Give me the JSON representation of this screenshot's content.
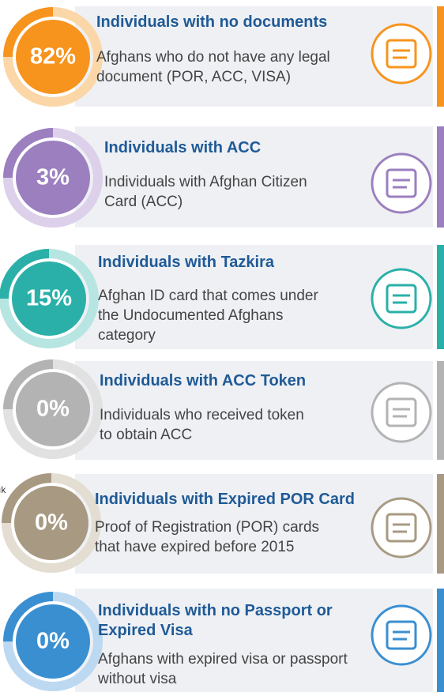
{
  "edge_text": "ık",
  "items": [
    {
      "percent": "82%",
      "title_lines": [
        "Individuals with no documents"
      ],
      "description_lines": [
        "Afghans who do not have any legal",
        "document (POR, ACC, VISA)"
      ]
    },
    {
      "percent": "3%",
      "title_lines": [
        "Individuals with ACC"
      ],
      "description_lines": [
        "Individuals with Afghan Citizen",
        "Card (ACC)"
      ]
    },
    {
      "percent": "15%",
      "title_lines": [
        "Individuals with Tazkira"
      ],
      "description_lines": [
        "Afghan ID card that comes under",
        "the Undocumented Afghans",
        "category"
      ]
    },
    {
      "percent": "0%",
      "title_lines": [
        "Individuals with ACC Token"
      ],
      "description_lines": [
        "Individuals who received token",
        "to obtain ACC"
      ]
    },
    {
      "percent": "0%",
      "title_lines": [
        "Individuals with Expired POR Card"
      ],
      "description_lines": [
        "Proof of Registration (POR) cards",
        "that have expired before 2015"
      ]
    },
    {
      "percent": "0%",
      "title_lines": [
        "Individuals with no Passport or",
        "Expired Visa"
      ],
      "description_lines": [
        "Afghans with expired visa or passport",
        "without visa"
      ]
    }
  ]
}
